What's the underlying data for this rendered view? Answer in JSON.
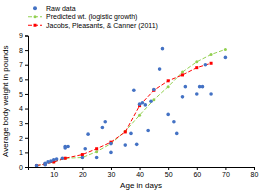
{
  "chart_data": {
    "type": "scatter",
    "xlabel": "Age in days",
    "ylabel": "Average body weight in pounds",
    "xlim": [
      1,
      80
    ],
    "ylim": [
      0,
      9
    ],
    "xticks": [
      10,
      20,
      30,
      40,
      50,
      60,
      70,
      80
    ],
    "yticks": [
      0,
      1,
      2,
      3,
      4,
      5,
      6,
      7,
      8,
      9
    ],
    "grid": false,
    "legend": "upper left",
    "series": [
      {
        "name": "Raw data",
        "type": "scatter",
        "marker": "circle",
        "color": "#4472C4",
        "x": [
          4,
          7,
          7,
          8,
          9,
          10,
          11,
          13,
          14,
          14,
          15,
          20,
          21,
          22,
          25,
          27,
          28,
          30,
          30,
          35,
          37,
          38,
          39,
          40,
          41,
          42,
          43,
          44,
          45,
          47,
          48,
          50,
          52,
          53,
          55,
          56,
          60,
          61,
          62,
          63,
          65,
          70
        ],
        "values": [
          0.1,
          0.15,
          0.25,
          0.35,
          0.4,
          0.5,
          0.55,
          0.6,
          1.3,
          1.4,
          1.4,
          0.65,
          1.25,
          2.25,
          0.65,
          2.7,
          3.1,
          1.0,
          1.6,
          1.5,
          2.3,
          5.25,
          1.55,
          4.3,
          4.4,
          4.25,
          2.5,
          4.5,
          5.3,
          6.7,
          8.1,
          3.6,
          3.1,
          2.3,
          4.8,
          5.5,
          5.0,
          5.5,
          5.5,
          7.0,
          5.0,
          7.5
        ]
      },
      {
        "name": "Predicted wt. (logistic growth)",
        "type": "line",
        "marker": "circle",
        "line_style": "dashed",
        "color": "#92D050",
        "x": [
          4,
          7,
          10,
          14,
          20,
          25,
          30,
          35,
          40,
          45,
          50,
          55,
          60,
          65,
          70
        ],
        "values": [
          0.1,
          0.2,
          0.35,
          0.6,
          0.65,
          1.05,
          1.6,
          2.45,
          3.55,
          4.6,
          5.5,
          6.5,
          7.2,
          7.7,
          8.05
        ]
      },
      {
        "name": "Jacobs, Pleasants, & Canner (2011)",
        "type": "line",
        "marker": "square",
        "line_style": "dashed",
        "color": "#FF0000",
        "x": [
          4,
          7,
          10,
          14,
          20,
          25,
          30,
          35,
          40,
          45,
          50,
          55,
          60,
          65
        ],
        "values": [
          0.1,
          0.2,
          0.35,
          0.6,
          0.85,
          1.25,
          1.7,
          2.4,
          4.2,
          5.25,
          5.9,
          6.3,
          6.8,
          7.1
        ]
      }
    ]
  }
}
